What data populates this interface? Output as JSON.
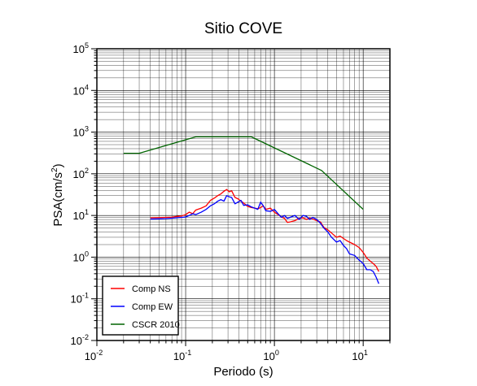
{
  "chart_data": {
    "type": "line",
    "title": "Sitio COVE",
    "xlabel": "Periodo (s)",
    "ylabel": "PSA(cm/s2)",
    "xscale": "log",
    "yscale": "log",
    "xlim": [
      0.01,
      20
    ],
    "ylim": [
      0.01,
      100000
    ],
    "x_tick_labels": [
      {
        "base": "10",
        "exp": "-2"
      },
      {
        "base": "10",
        "exp": "-1"
      },
      {
        "base": "10",
        "exp": "0"
      },
      {
        "base": "10",
        "exp": "1"
      }
    ],
    "y_tick_labels": [
      {
        "base": "10",
        "exp": "-2"
      },
      {
        "base": "10",
        "exp": "-1"
      },
      {
        "base": "10",
        "exp": "0"
      },
      {
        "base": "10",
        "exp": "1"
      },
      {
        "base": "10",
        "exp": "2"
      },
      {
        "base": "10",
        "exp": "3"
      },
      {
        "base": "10",
        "exp": "4"
      },
      {
        "base": "10",
        "exp": "5"
      }
    ],
    "grid": true,
    "legend_position": "bottom-left",
    "series": [
      {
        "name": "Comp NS",
        "color": "#ff0000",
        "points": [
          [
            0.04,
            8.8
          ],
          [
            0.05,
            8.9
          ],
          [
            0.06,
            9.0
          ],
          [
            0.07,
            9.1
          ],
          [
            0.08,
            9.5
          ],
          [
            0.09,
            9.7
          ],
          [
            0.1,
            10.5
          ],
          [
            0.11,
            12.0
          ],
          [
            0.12,
            11.0
          ],
          [
            0.13,
            13.5
          ],
          [
            0.15,
            15.0
          ],
          [
            0.17,
            17.0
          ],
          [
            0.19,
            23.0
          ],
          [
            0.21,
            26.0
          ],
          [
            0.23,
            30.0
          ],
          [
            0.25,
            33.0
          ],
          [
            0.27,
            38.0
          ],
          [
            0.29,
            42.0
          ],
          [
            0.31,
            37.0
          ],
          [
            0.33,
            39.0
          ],
          [
            0.36,
            27.0
          ],
          [
            0.39,
            25.0
          ],
          [
            0.42,
            22.0
          ],
          [
            0.45,
            20.0
          ],
          [
            0.5,
            16.5
          ],
          [
            0.55,
            15.5
          ],
          [
            0.6,
            15.0
          ],
          [
            0.65,
            14.5
          ],
          [
            0.7,
            15.5
          ],
          [
            0.75,
            17.0
          ],
          [
            0.8,
            14.0
          ],
          [
            0.9,
            15.0
          ],
          [
            1.0,
            12.0
          ],
          [
            1.1,
            10.5
          ],
          [
            1.2,
            9.2
          ],
          [
            1.3,
            8.5
          ],
          [
            1.4,
            6.8
          ],
          [
            1.5,
            7.0
          ],
          [
            1.7,
            7.5
          ],
          [
            1.9,
            8.5
          ],
          [
            2.1,
            8.8
          ],
          [
            2.3,
            8.0
          ],
          [
            2.5,
            8.7
          ],
          [
            2.7,
            8.2
          ],
          [
            3.0,
            7.5
          ],
          [
            3.3,
            7.0
          ],
          [
            3.6,
            5.2
          ],
          [
            4.0,
            4.5
          ],
          [
            4.4,
            3.8
          ],
          [
            5.0,
            3.0
          ],
          [
            5.5,
            3.2
          ],
          [
            6.0,
            2.8
          ],
          [
            6.5,
            2.5
          ],
          [
            7.0,
            2.3
          ],
          [
            8.0,
            2.0
          ],
          [
            9.0,
            1.7
          ],
          [
            10.0,
            1.3
          ],
          [
            11.0,
            0.95
          ],
          [
            12.0,
            0.8
          ],
          [
            13.0,
            0.7
          ],
          [
            14.0,
            0.6
          ],
          [
            15.0,
            0.45
          ]
        ]
      },
      {
        "name": "Comp EW",
        "color": "#0000ff",
        "points": [
          [
            0.04,
            8.2
          ],
          [
            0.05,
            8.3
          ],
          [
            0.06,
            8.4
          ],
          [
            0.07,
            8.6
          ],
          [
            0.08,
            8.8
          ],
          [
            0.09,
            9.0
          ],
          [
            0.1,
            9.2
          ],
          [
            0.11,
            10.0
          ],
          [
            0.12,
            11.0
          ],
          [
            0.13,
            10.5
          ],
          [
            0.15,
            12.0
          ],
          [
            0.17,
            14.0
          ],
          [
            0.19,
            17.0
          ],
          [
            0.21,
            19.0
          ],
          [
            0.23,
            22.0
          ],
          [
            0.25,
            24.0
          ],
          [
            0.27,
            22.0
          ],
          [
            0.29,
            30.0
          ],
          [
            0.31,
            28.0
          ],
          [
            0.33,
            27.0
          ],
          [
            0.36,
            19.0
          ],
          [
            0.39,
            21.0
          ],
          [
            0.42,
            23.0
          ],
          [
            0.45,
            17.5
          ],
          [
            0.5,
            18.0
          ],
          [
            0.55,
            16.0
          ],
          [
            0.6,
            15.0
          ],
          [
            0.65,
            14.0
          ],
          [
            0.7,
            21.0
          ],
          [
            0.75,
            17.0
          ],
          [
            0.8,
            13.0
          ],
          [
            0.9,
            12.5
          ],
          [
            1.0,
            14.0
          ],
          [
            1.1,
            11.0
          ],
          [
            1.2,
            9.0
          ],
          [
            1.3,
            10.0
          ],
          [
            1.4,
            8.5
          ],
          [
            1.5,
            9.0
          ],
          [
            1.7,
            10.0
          ],
          [
            1.9,
            8.0
          ],
          [
            2.1,
            10.0
          ],
          [
            2.3,
            9.5
          ],
          [
            2.5,
            8.0
          ],
          [
            2.7,
            9.0
          ],
          [
            3.0,
            8.0
          ],
          [
            3.3,
            6.5
          ],
          [
            3.6,
            5.0
          ],
          [
            4.0,
            4.0
          ],
          [
            4.4,
            3.0
          ],
          [
            5.0,
            2.3
          ],
          [
            5.5,
            2.5
          ],
          [
            6.0,
            1.9
          ],
          [
            6.5,
            1.6
          ],
          [
            7.0,
            1.2
          ],
          [
            8.0,
            1.1
          ],
          [
            9.0,
            0.85
          ],
          [
            10.0,
            0.7
          ],
          [
            11.0,
            0.5
          ],
          [
            12.0,
            0.5
          ],
          [
            13.0,
            0.45
          ],
          [
            14.0,
            0.33
          ],
          [
            15.0,
            0.23
          ]
        ]
      },
      {
        "name": "CSCR 2010",
        "color": "#006400",
        "points": [
          [
            0.02,
            310
          ],
          [
            0.03,
            310
          ],
          [
            0.13,
            770
          ],
          [
            0.55,
            770
          ],
          [
            3.4,
            120
          ],
          [
            10.0,
            14
          ]
        ]
      }
    ]
  }
}
